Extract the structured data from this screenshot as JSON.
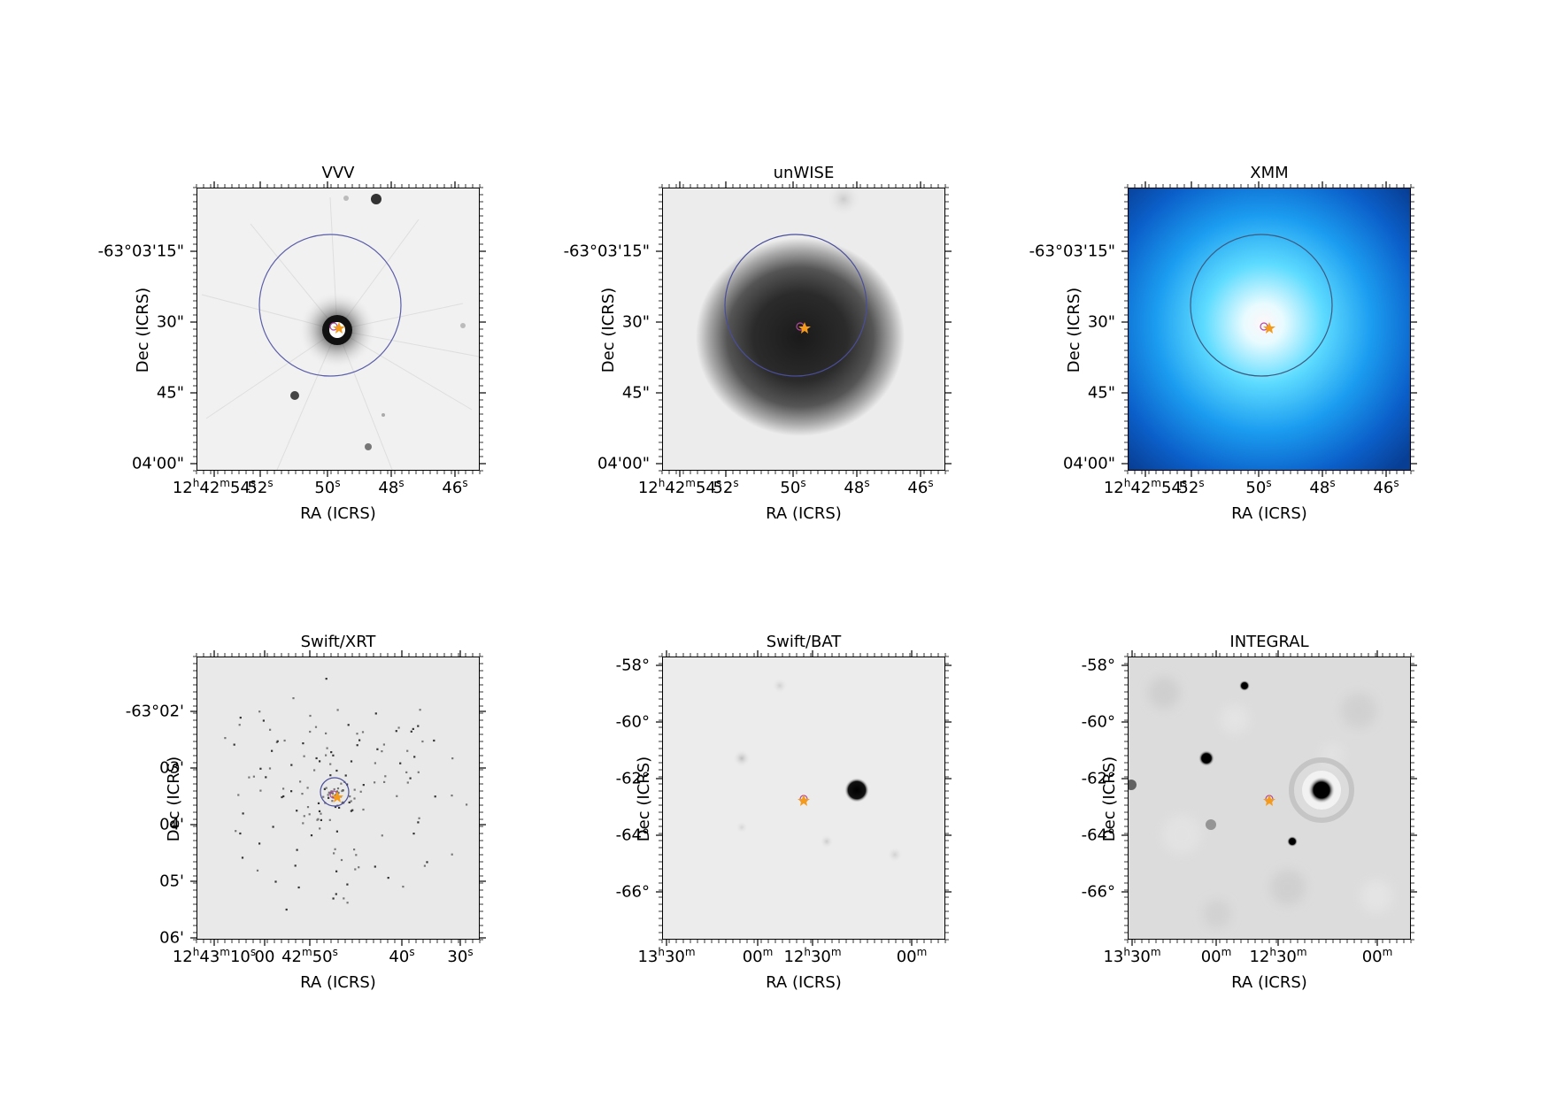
{
  "panels": [
    {
      "id": "vvv",
      "title": "VVV",
      "xlabel": "RA (ICRS)",
      "ylabel": "Dec (ICRS)",
      "xticks": [
        {
          "main": "12",
          "u1": "h",
          "mid": "42",
          "u2": "m",
          "sec": "54",
          "u3": "s"
        },
        {
          "sec": "52",
          "u3": "s"
        },
        {
          "sec": "50",
          "u3": "s"
        },
        {
          "sec": "48",
          "u3": "s"
        },
        {
          "sec": "46",
          "u3": "s"
        }
      ],
      "yticks": [
        "-63°03'15\"",
        "30\"",
        "45\"",
        "04'00\""
      ]
    },
    {
      "id": "unwise",
      "title": "unWISE",
      "xlabel": "RA (ICRS)",
      "ylabel": "Dec (ICRS)",
      "xticks": [
        {
          "main": "12",
          "u1": "h",
          "mid": "42",
          "u2": "m",
          "sec": "54",
          "u3": "s"
        },
        {
          "sec": "52",
          "u3": "s"
        },
        {
          "sec": "50",
          "u3": "s"
        },
        {
          "sec": "48",
          "u3": "s"
        },
        {
          "sec": "46",
          "u3": "s"
        }
      ],
      "yticks": [
        "-63°03'15\"",
        "30\"",
        "45\"",
        "04'00\""
      ]
    },
    {
      "id": "xmm",
      "title": "XMM",
      "xlabel": "RA (ICRS)",
      "ylabel": "Dec (ICRS)",
      "xticks": [
        {
          "main": "12",
          "u1": "h",
          "mid": "42",
          "u2": "m",
          "sec": "54",
          "u3": "s"
        },
        {
          "sec": "52",
          "u3": "s"
        },
        {
          "sec": "50",
          "u3": "s"
        },
        {
          "sec": "48",
          "u3": "s"
        },
        {
          "sec": "46",
          "u3": "s"
        }
      ],
      "yticks": [
        "-63°03'15\"",
        "30\"",
        "45\"",
        "04'00\""
      ]
    },
    {
      "id": "xrt",
      "title": "Swift/XRT",
      "xlabel": "RA (ICRS)",
      "ylabel": "Dec (ICRS)",
      "xticks": [
        {
          "main": "12",
          "u1": "h",
          "mid": "43",
          "u2": "m",
          "sec": "10",
          "u3": "s"
        },
        {
          "sec": "00",
          "u3": ""
        },
        {
          "mid": "42",
          "u2": "m",
          "sec": "50",
          "u3": "s"
        },
        {
          "sec": "40",
          "u3": "s"
        },
        {
          "sec": "30",
          "u3": "s"
        }
      ],
      "yticks": [
        "-63°02'",
        "03'",
        "04'",
        "05'",
        "06'"
      ]
    },
    {
      "id": "bat",
      "title": "Swift/BAT",
      "xlabel": "RA (ICRS)",
      "ylabel": "Dec (ICRS)",
      "xticks": [
        {
          "main": "13",
          "u1": "h",
          "mid": "30",
          "u2": "m"
        },
        {
          "mid": "00",
          "u2": "m"
        },
        {
          "main": "12",
          "u1": "h",
          "mid": "30",
          "u2": "m"
        },
        {
          "mid": "00",
          "u2": "m"
        }
      ],
      "yticks": [
        "-58°",
        "-60°",
        "-62°",
        "-64°",
        "-66°"
      ]
    },
    {
      "id": "integral",
      "title": "INTEGRAL",
      "xlabel": "RA (ICRS)",
      "ylabel": "Dec (ICRS)",
      "xticks": [
        {
          "main": "13",
          "u1": "h",
          "mid": "30",
          "u2": "m"
        },
        {
          "mid": "00",
          "u2": "m"
        },
        {
          "main": "12",
          "u1": "h",
          "mid": "30",
          "u2": "m"
        },
        {
          "mid": "00",
          "u2": "m"
        }
      ],
      "yticks": [
        "-58°",
        "-60°",
        "-62°",
        "-64°",
        "-66°"
      ]
    }
  ],
  "colors": {
    "circle": "#5b5ea8",
    "marker": "#f59b1c"
  }
}
